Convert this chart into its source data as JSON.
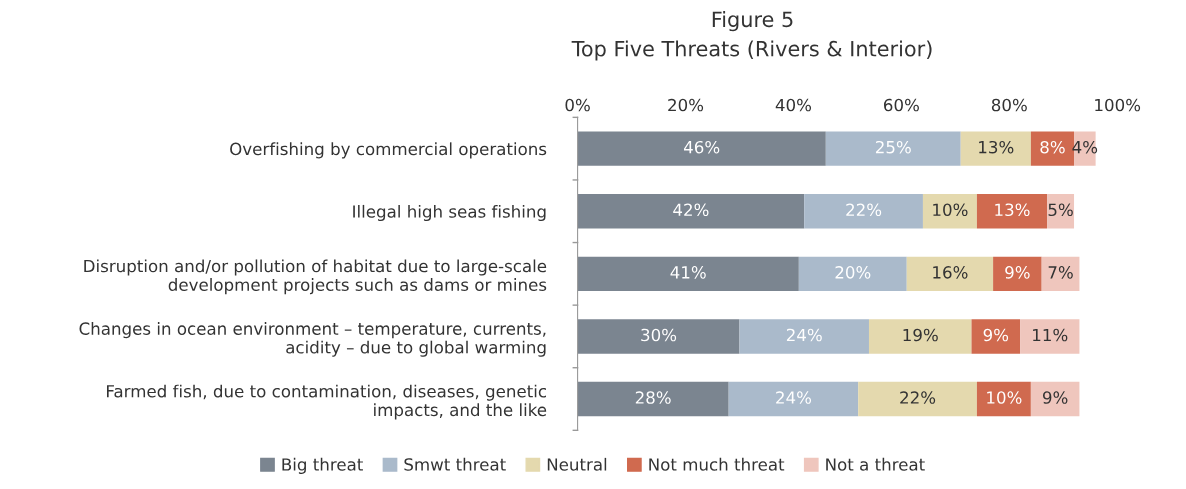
{
  "chart_data": {
    "type": "bar",
    "orientation": "horizontal",
    "stacked": true,
    "title": "Figure 5",
    "subtitle": "Top Five Threats (Rivers & Interior)",
    "categories": [
      "Overfishing by commercial operations",
      "Illegal high seas fishing",
      "Disruption and/or pollution of habitat due to large-scale\ndevelopment projects such as dams or mines",
      "Changes in ocean environment – temperature, currents,\nacidity – due to global warming",
      "Farmed fish, due to contamination, diseases, genetic\nimpacts, and the like"
    ],
    "series": [
      {
        "name": "Big threat",
        "color": "#7b8590",
        "values": [
          46,
          42,
          41,
          30,
          28
        ],
        "value_labels": [
          "46%",
          "42%",
          "41%",
          "30%",
          "28%"
        ]
      },
      {
        "name": "Smwt threat",
        "color": "#aabacb",
        "values": [
          25,
          22,
          20,
          24,
          24
        ],
        "value_labels": [
          "25%",
          "22%",
          "20%",
          "24%",
          "24%"
        ]
      },
      {
        "name": "Neutral",
        "color": "#e4d9ae",
        "values": [
          13,
          10,
          16,
          19,
          22
        ],
        "value_labels": [
          "13%",
          "10%",
          "16%",
          "19%",
          "22%"
        ]
      },
      {
        "name": "Not much threat",
        "color": "#d06a4f",
        "values": [
          8,
          13,
          9,
          9,
          10
        ],
        "value_labels": [
          "8%",
          "13%",
          "9%",
          "9%",
          "10%"
        ]
      },
      {
        "name": "Not a threat",
        "color": "#efc6bd",
        "values": [
          4,
          5,
          7,
          11,
          9
        ],
        "value_labels": [
          "4%",
          "5%",
          "7%",
          "11%",
          "9%"
        ]
      }
    ],
    "xlim": [
      0,
      100
    ],
    "xticks": [
      {
        "value": 0,
        "label": "0%"
      },
      {
        "value": 20,
        "label": "20%"
      },
      {
        "value": 40,
        "label": "40%"
      },
      {
        "value": 60,
        "label": "60%"
      },
      {
        "value": 80,
        "label": "80%"
      },
      {
        "value": 100,
        "label": "100%"
      }
    ],
    "grid": false,
    "legend": "bottom"
  }
}
